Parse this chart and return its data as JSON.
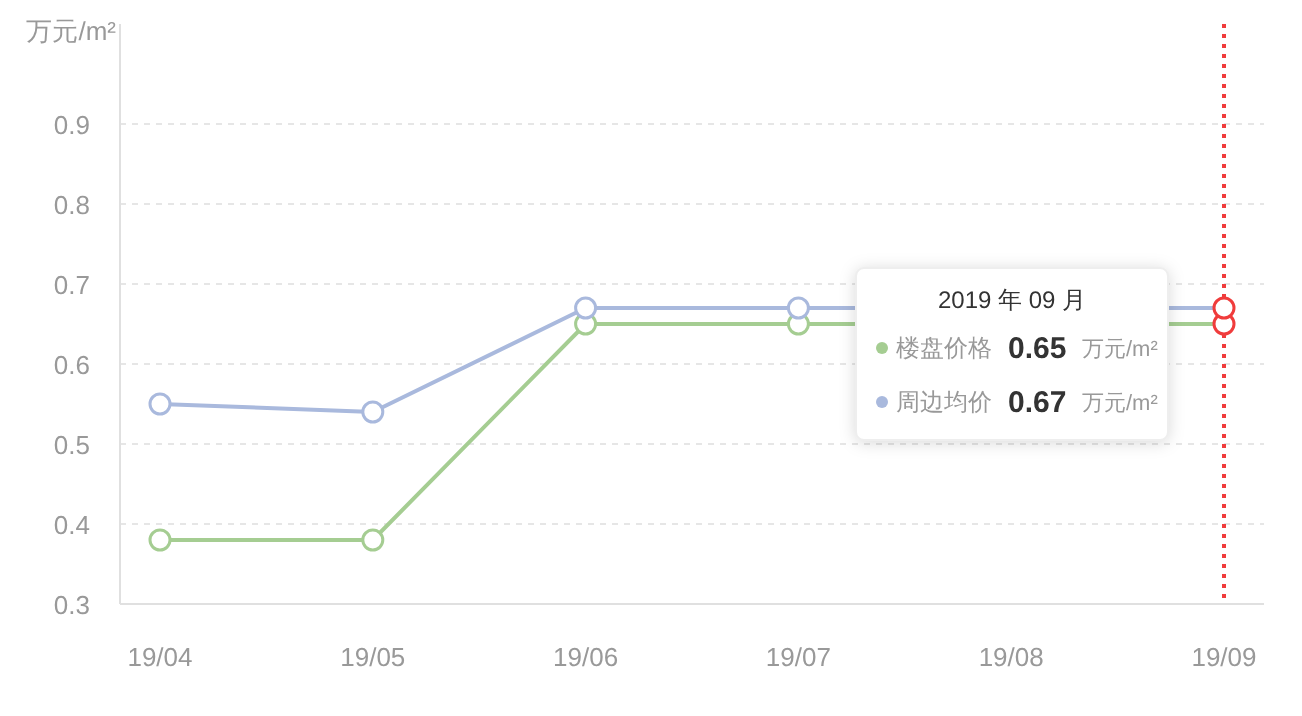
{
  "chart_data": {
    "type": "line",
    "ylabel": "万元/m²",
    "categories": [
      "19/04",
      "19/05",
      "19/06",
      "19/07",
      "19/08",
      "19/09"
    ],
    "series": [
      {
        "name": "楼盘价格",
        "color": "#a5cd92",
        "values": [
          0.38,
          0.38,
          0.65,
          0.65,
          null,
          0.65
        ]
      },
      {
        "name": "周边均价",
        "color": "#a9b9dd",
        "values": [
          0.55,
          0.54,
          0.67,
          0.67,
          null,
          0.67
        ]
      }
    ],
    "ylim": [
      0.3,
      1.025
    ],
    "yticks": [
      0.3,
      0.4,
      0.5,
      0.6,
      0.7,
      0.8,
      0.9
    ],
    "grid": "y",
    "marker": "circle",
    "line_style": "solid",
    "legend": "right",
    "legend_title": "2019 年 09 月",
    "annotations": [
      "0.65",
      "万元/m²",
      "0.67",
      "万元/m²"
    ],
    "ref_lines": [
      {
        "axis": "x",
        "value": "19/09",
        "color": "#f03c3c",
        "line_style": "dotted"
      }
    ]
  }
}
